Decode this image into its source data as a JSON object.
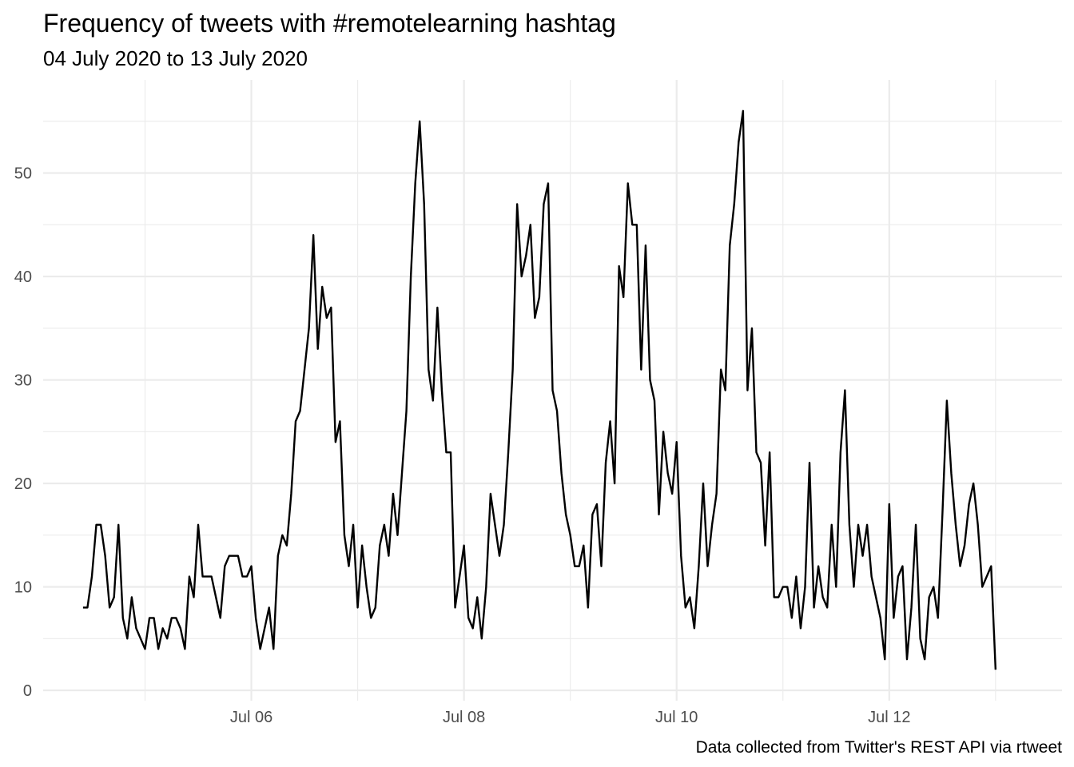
{
  "chart_data": {
    "type": "line",
    "title": "Frequency of tweets with #remotelearning hashtag",
    "subtitle": "04 July 2020 to 13 July 2020",
    "caption": "Data collected from Twitter's REST API via rtweet",
    "xlabel": "",
    "ylabel": "",
    "x_unit": "hour",
    "x_start": "2020-07-04 10:00",
    "x_step_hours": 1,
    "xlim": [
      "2020-07-04 01:00",
      "2020-07-13 15:00"
    ],
    "ylim": [
      -1,
      59
    ],
    "x_major_ticks": [
      {
        "value": "2020-07-06",
        "label": "Jul 06"
      },
      {
        "value": "2020-07-08",
        "label": "Jul 08"
      },
      {
        "value": "2020-07-10",
        "label": "Jul 10"
      },
      {
        "value": "2020-07-12",
        "label": "Jul 12"
      }
    ],
    "x_minor_ticks": [
      "2020-07-05",
      "2020-07-07",
      "2020-07-09",
      "2020-07-11",
      "2020-07-13"
    ],
    "y_major_ticks": [
      0,
      10,
      20,
      30,
      40,
      50
    ],
    "y_minor_ticks": [
      5,
      15,
      25,
      35,
      45,
      55
    ],
    "grid": true,
    "legend": "none",
    "line_color": "#000000",
    "values": [
      8,
      8,
      11,
      16,
      16,
      13,
      8,
      9,
      16,
      7,
      5,
      9,
      6,
      5,
      4,
      7,
      7,
      4,
      6,
      5,
      7,
      7,
      6,
      4,
      11,
      9,
      16,
      11,
      11,
      11,
      9,
      7,
      12,
      13,
      13,
      13,
      11,
      11,
      12,
      7,
      4,
      6,
      8,
      4,
      13,
      15,
      14,
      19,
      26,
      27,
      31,
      35,
      44,
      33,
      39,
      36,
      37,
      24,
      26,
      15,
      12,
      16,
      8,
      14,
      10,
      7,
      8,
      14,
      16,
      13,
      19,
      15,
      21,
      27,
      40,
      49,
      55,
      47,
      31,
      28,
      37,
      29,
      23,
      23,
      8,
      11,
      14,
      7,
      6,
      9,
      5,
      10,
      19,
      16,
      13,
      16,
      23,
      31,
      47,
      40,
      42,
      45,
      36,
      38,
      47,
      49,
      29,
      27,
      21,
      17,
      15,
      12,
      12,
      14,
      8,
      17,
      18,
      12,
      22,
      26,
      20,
      41,
      38,
      49,
      45,
      45,
      31,
      43,
      30,
      28,
      17,
      25,
      21,
      19,
      24,
      13,
      8,
      9,
      6,
      12,
      20,
      12,
      16,
      19,
      31,
      29,
      43,
      47,
      53,
      56,
      29,
      35,
      23,
      22,
      14,
      23,
      9,
      9,
      10,
      10,
      7,
      11,
      6,
      10,
      22,
      8,
      12,
      9,
      8,
      16,
      10,
      23,
      29,
      16,
      10,
      16,
      13,
      16,
      11,
      9,
      7,
      3,
      18,
      7,
      11,
      12,
      3,
      8,
      16,
      5,
      3,
      9,
      10,
      7,
      17,
      28,
      21,
      16,
      12,
      14,
      18,
      20,
      16,
      10,
      11,
      12,
      2
    ]
  }
}
